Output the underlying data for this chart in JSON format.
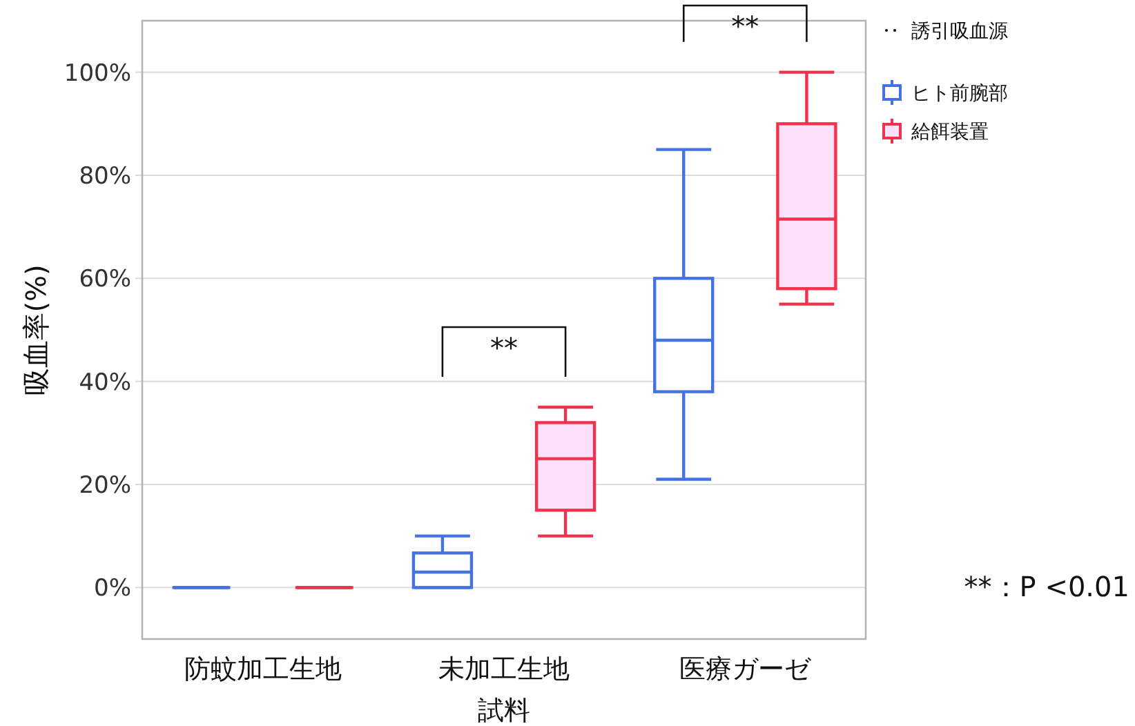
{
  "chart_data": {
    "type": "box",
    "xlabel": "試料",
    "ylabel": "吸血率(%)",
    "legend_title": "誘引吸血源",
    "categories": [
      "防蚊加工生地",
      "未加工生地",
      "医療ガーゼ"
    ],
    "series": [
      {
        "name": "ヒト前腕部",
        "color": "#4472e0",
        "boxes": [
          {
            "low": 0,
            "q1": 0,
            "median": 0,
            "q3": 0,
            "high": 0
          },
          {
            "low": 0,
            "q1": 0,
            "median": 3,
            "q3": 6.7,
            "high": 10
          },
          {
            "low": 21,
            "q1": 38,
            "median": 48,
            "q3": 60,
            "high": 85
          }
        ]
      },
      {
        "name": "給餌装置",
        "color": "#f0324e",
        "boxes": [
          {
            "low": 0,
            "q1": 0,
            "median": 0,
            "q3": 0,
            "high": 0
          },
          {
            "low": 10,
            "q1": 15,
            "median": 25,
            "q3": 32,
            "high": 35
          },
          {
            "low": 55,
            "q1": 58,
            "median": 71.5,
            "q3": 90,
            "high": 100
          }
        ]
      }
    ],
    "ylim": [
      -10,
      110
    ],
    "yticks": [
      {
        "value": 0,
        "label": "0%"
      },
      {
        "value": 20,
        "label": "20%"
      },
      {
        "value": 40,
        "label": "40%"
      },
      {
        "value": 60,
        "label": "60%"
      },
      {
        "value": 80,
        "label": "80%"
      },
      {
        "value": 100,
        "label": "100%"
      }
    ],
    "grid": "y",
    "legend": "top right",
    "annotations": [
      "**",
      "**",
      "**：P <0.01"
    ]
  }
}
